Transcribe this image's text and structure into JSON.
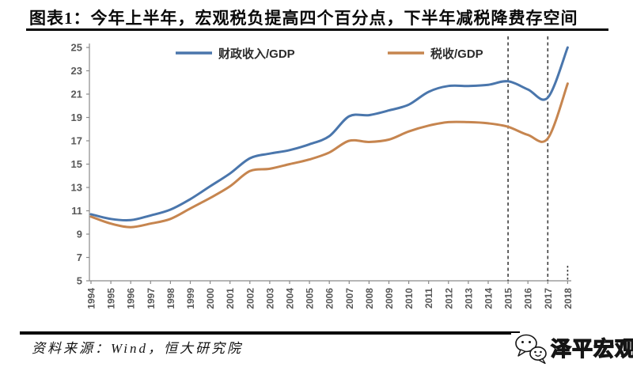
{
  "title": "图表1：今年上半年，宏观税负提高四个百分点，下半年减税降费存空间",
  "source_note": "资料来源：Wind，恒大研究院",
  "logo": {
    "name": "泽平宏观"
  },
  "colors": {
    "fiscal_line": "#4A76AC",
    "tax_line": "#C6854F",
    "axis": "#8a8a8a",
    "tick_label": "#595959",
    "legend_text": "#2b2b2b",
    "dashed_line": "#3d3d3d"
  },
  "chart_data": {
    "type": "line",
    "x": [
      1994,
      1995,
      1996,
      1997,
      1998,
      1999,
      2000,
      2001,
      2002,
      2003,
      2004,
      2005,
      2006,
      2007,
      2008,
      2009,
      2010,
      2011,
      2012,
      2013,
      2014,
      2015,
      2016,
      2017,
      2018
    ],
    "series": [
      {
        "key": "fiscal-revenue-gdp",
        "name": "财政收入/GDP",
        "color_key": "fiscal_line",
        "values": [
          10.7,
          10.3,
          10.2,
          10.6,
          11.1,
          12.0,
          13.1,
          14.2,
          15.5,
          15.9,
          16.2,
          16.7,
          17.4,
          19.1,
          19.2,
          19.6,
          20.1,
          21.2,
          21.7,
          21.7,
          21.8,
          22.1,
          21.4,
          20.7,
          25.0
        ]
      },
      {
        "key": "tax-gdp",
        "name": "税收/GDP",
        "color_key": "tax_line",
        "values": [
          10.5,
          9.9,
          9.6,
          9.9,
          10.3,
          11.2,
          12.1,
          13.1,
          14.4,
          14.6,
          15.0,
          15.4,
          16.0,
          17.0,
          16.9,
          17.1,
          17.8,
          18.3,
          18.6,
          18.6,
          18.5,
          18.2,
          17.5,
          17.2,
          21.9
        ]
      }
    ],
    "ylim": [
      5,
      25
    ],
    "yticks": [
      5,
      7,
      9,
      11,
      13,
      15,
      17,
      19,
      21,
      23,
      25
    ],
    "grid": false,
    "legend_position": "top-inside",
    "dashed_vlines_x": [
      2015,
      2017
    ],
    "dashed_stub_x": 2018
  }
}
